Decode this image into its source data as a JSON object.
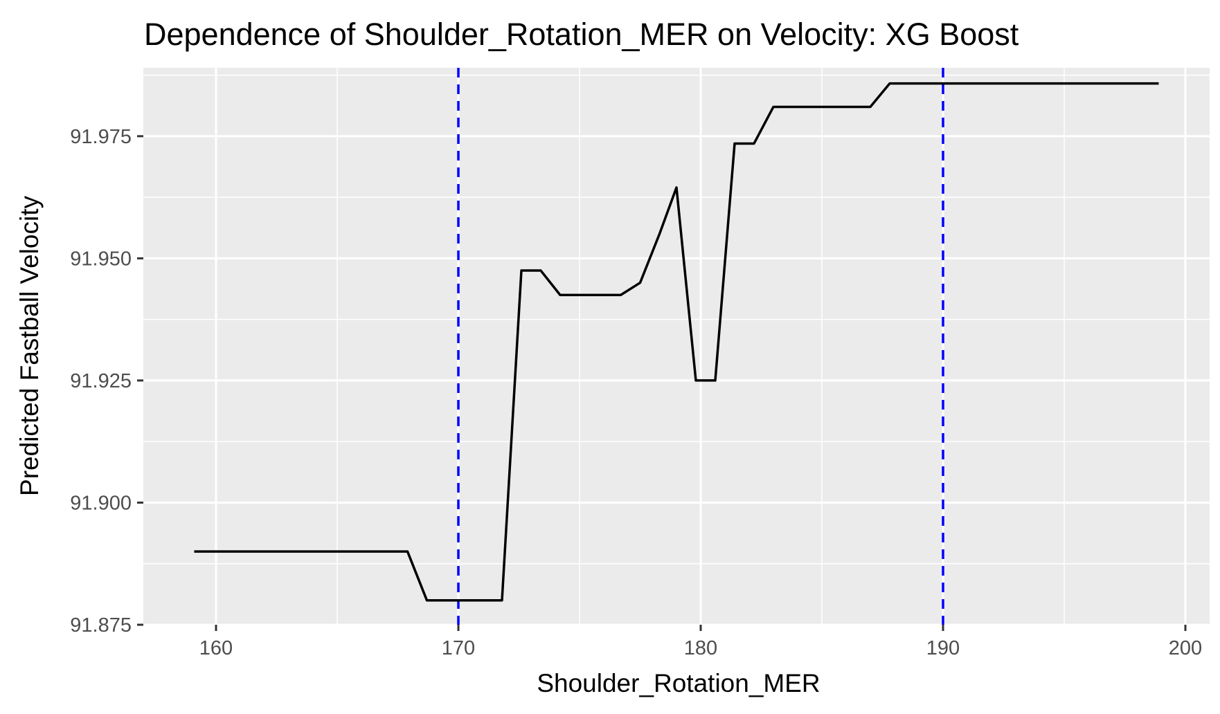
{
  "chart_data": {
    "type": "line",
    "title": "Dependence of Shoulder_Rotation_MER on Velocity: XG Boost",
    "xlabel": "Shoulder_Rotation_MER",
    "ylabel": "Predicted Fastball Velocity",
    "xlim": [
      157.0,
      201.0
    ],
    "ylim": [
      91.875,
      91.989
    ],
    "x_ticks": [
      160,
      170,
      180,
      190,
      200
    ],
    "x_tick_labels": [
      "160",
      "170",
      "180",
      "190",
      "200"
    ],
    "y_ticks": [
      91.875,
      91.9,
      91.925,
      91.95,
      91.975
    ],
    "y_tick_labels": [
      "91.875",
      "91.900",
      "91.925",
      "91.950",
      "91.975"
    ],
    "grid": true,
    "series": [
      {
        "color": "#000000",
        "x": [
          159.1,
          167.9,
          168.7,
          171.8,
          172.6,
          173.4,
          174.2,
          176.7,
          177.5,
          178.3,
          179.0,
          179.8,
          180.6,
          181.4,
          182.2,
          183.0,
          183.8,
          187.0,
          187.8,
          198.9
        ],
        "y": [
          91.89,
          91.89,
          91.88,
          91.88,
          91.9475,
          91.9475,
          91.9425,
          91.9425,
          91.945,
          91.955,
          91.9645,
          91.925,
          91.925,
          91.9735,
          91.9735,
          91.981,
          91.981,
          91.981,
          91.9858,
          91.9858
        ]
      }
    ],
    "vlines": [
      {
        "x": 170,
        "color": "#0000ff",
        "style": "dashed"
      },
      {
        "x": 190,
        "color": "#0000ff",
        "style": "dashed"
      }
    ],
    "panel_background": "#ebebeb",
    "grid_color": "#ffffff"
  }
}
